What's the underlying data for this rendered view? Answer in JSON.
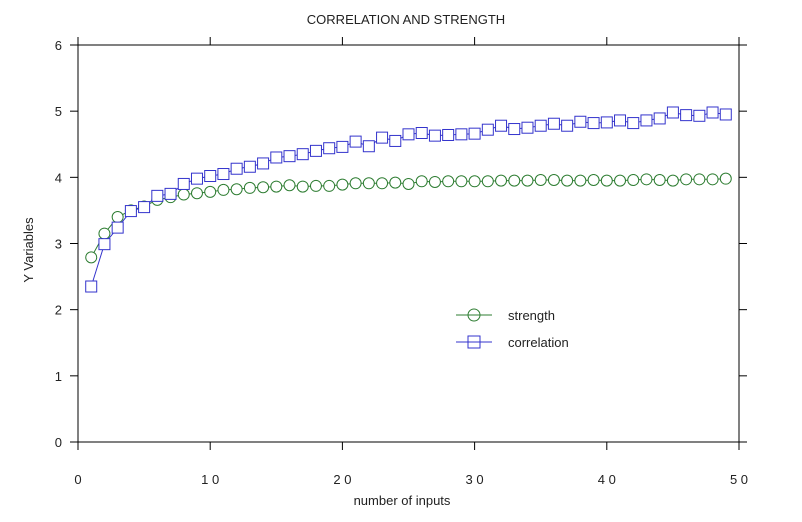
{
  "chart_data": {
    "type": "line",
    "title": "CORRELATION AND STRENGTH",
    "xlabel": "number of inputs",
    "ylabel": "Y Variables",
    "xlim": [
      0,
      50
    ],
    "ylim": [
      0,
      6
    ],
    "x_ticks": [
      0,
      10,
      20,
      30,
      40,
      50
    ],
    "y_ticks": [
      0,
      1,
      2,
      3,
      4,
      5,
      6
    ],
    "x_tick_labels": [
      "0",
      "1 0",
      "2 0",
      "3 0",
      "4 0",
      "5 0"
    ],
    "y_tick_labels": [
      "0",
      "1",
      "2",
      "3",
      "4",
      "5",
      "6"
    ],
    "grid": false,
    "legend_position": "center-right",
    "x": [
      1,
      2,
      3,
      4,
      5,
      6,
      7,
      8,
      9,
      10,
      11,
      12,
      13,
      14,
      15,
      16,
      17,
      18,
      19,
      20,
      21,
      22,
      23,
      24,
      25,
      26,
      27,
      28,
      29,
      30,
      31,
      32,
      33,
      34,
      35,
      36,
      37,
      38,
      39,
      40,
      41,
      42,
      43,
      44,
      45,
      46,
      47,
      48,
      49
    ],
    "series": [
      {
        "name": "strength",
        "marker": "circle",
        "color": "#2e7d32",
        "values": [
          2.79,
          3.15,
          3.4,
          3.5,
          3.56,
          3.66,
          3.7,
          3.74,
          3.76,
          3.78,
          3.81,
          3.82,
          3.84,
          3.85,
          3.86,
          3.88,
          3.86,
          3.87,
          3.87,
          3.89,
          3.91,
          3.91,
          3.91,
          3.92,
          3.9,
          3.94,
          3.93,
          3.94,
          3.94,
          3.94,
          3.94,
          3.95,
          3.95,
          3.95,
          3.96,
          3.96,
          3.95,
          3.95,
          3.96,
          3.95,
          3.95,
          3.96,
          3.97,
          3.96,
          3.95,
          3.97,
          3.97,
          3.97,
          3.98
        ]
      },
      {
        "name": "correlation",
        "marker": "square",
        "color": "#3333cc",
        "values": [
          2.35,
          2.99,
          3.24,
          3.49,
          3.55,
          3.72,
          3.75,
          3.9,
          3.98,
          4.02,
          4.05,
          4.13,
          4.16,
          4.21,
          4.3,
          4.32,
          4.35,
          4.4,
          4.44,
          4.46,
          4.54,
          4.47,
          4.6,
          4.55,
          4.65,
          4.67,
          4.63,
          4.64,
          4.65,
          4.66,
          4.72,
          4.78,
          4.73,
          4.75,
          4.78,
          4.81,
          4.78,
          4.84,
          4.82,
          4.83,
          4.86,
          4.82,
          4.86,
          4.89,
          4.98,
          4.94,
          4.93,
          4.98,
          4.95
        ]
      }
    ]
  }
}
